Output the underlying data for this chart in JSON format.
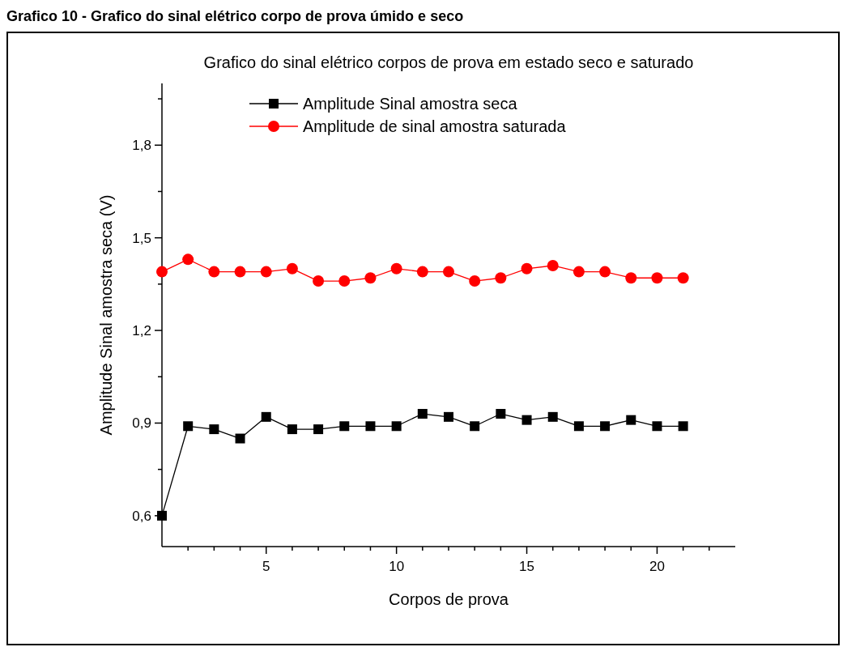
{
  "chart_data": {
    "type": "line",
    "title": "Grafico 10 - Grafico do sinal elétrico corpo de prova úmido e seco",
    "subtitle": "Grafico do sinal elétrico corpos de prova em estado seco e saturado",
    "xlabel": "Corpos de prova",
    "ylabel": "Amplitude Sinal amostra seca (V)",
    "x": [
      1,
      2,
      3,
      4,
      5,
      6,
      7,
      8,
      9,
      10,
      11,
      12,
      13,
      14,
      15,
      16,
      17,
      18,
      19,
      20,
      21
    ],
    "series": [
      {
        "name": "Amplitude Sinal amostra seca",
        "color": "#000000",
        "marker": "square",
        "values": [
          0.6,
          0.89,
          0.88,
          0.85,
          0.92,
          0.88,
          0.88,
          0.89,
          0.89,
          0.89,
          0.93,
          0.92,
          0.89,
          0.93,
          0.91,
          0.92,
          0.89,
          0.89,
          0.91,
          0.89,
          0.89
        ]
      },
      {
        "name": "Amplitude de sinal amostra saturada",
        "color": "#ff0000",
        "marker": "circle",
        "values": [
          1.39,
          1.43,
          1.39,
          1.39,
          1.39,
          1.4,
          1.36,
          1.36,
          1.37,
          1.4,
          1.39,
          1.39,
          1.36,
          1.37,
          1.4,
          1.41,
          1.39,
          1.39,
          1.37,
          1.37,
          1.37
        ]
      }
    ],
    "xlim": [
      1,
      23
    ],
    "xticks": [
      {
        "value": 2,
        "label": null
      },
      {
        "value": 3,
        "label": null
      },
      {
        "value": 4,
        "label": null
      },
      5,
      {
        "value": 6,
        "label": null
      },
      {
        "value": 7,
        "label": null
      },
      {
        "value": 8,
        "label": null
      },
      {
        "value": 9,
        "label": null
      },
      10,
      {
        "value": 11,
        "label": null
      },
      {
        "value": 12,
        "label": null
      },
      {
        "value": 13,
        "label": null
      },
      {
        "value": 14,
        "label": null
      },
      15,
      {
        "value": 16,
        "label": null
      },
      {
        "value": 17,
        "label": null
      },
      {
        "value": 18,
        "label": null
      },
      {
        "value": 19,
        "label": null
      },
      20,
      {
        "value": 21,
        "label": null
      },
      {
        "value": 22,
        "label": null
      }
    ],
    "ylim": [
      0.5,
      2.0
    ],
    "yticks": [
      {
        "value": 0.6,
        "label": "0,6"
      },
      {
        "value": 0.75,
        "label": null
      },
      {
        "value": 0.9,
        "label": "0,9"
      },
      {
        "value": 1.05,
        "label": null
      },
      {
        "value": 1.2,
        "label": "1,2"
      },
      {
        "value": 1.35,
        "label": null
      },
      {
        "value": 1.5,
        "label": "1,5"
      },
      {
        "value": 1.65,
        "label": null
      },
      {
        "value": 1.8,
        "label": "1,8"
      },
      {
        "value": 1.95,
        "label": null
      }
    ],
    "legend": "top",
    "grid": false
  }
}
